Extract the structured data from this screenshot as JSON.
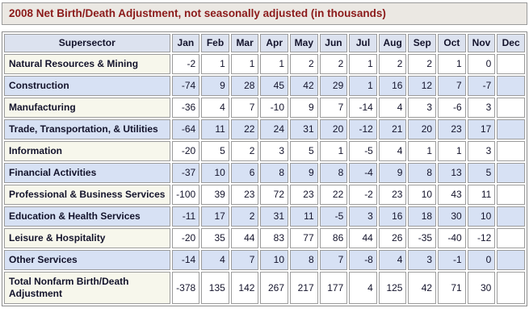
{
  "title": "2008 Net Birth/Death Adjustment, not seasonally adjusted (in thousands)",
  "chart_data": {
    "type": "table",
    "title": "2008 Net Birth/Death Adjustment, not seasonally adjusted (in thousands)",
    "units": "thousands",
    "columns": [
      "Supersector",
      "Jan",
      "Feb",
      "Mar",
      "Apr",
      "May",
      "Jun",
      "Jul",
      "Aug",
      "Sep",
      "Oct",
      "Nov",
      "Dec"
    ],
    "rows": [
      {
        "label": "Natural Resources & Mining",
        "values": [
          -2,
          1,
          1,
          1,
          2,
          2,
          1,
          2,
          2,
          1,
          0,
          null
        ]
      },
      {
        "label": "Construction",
        "values": [
          -74,
          9,
          28,
          45,
          42,
          29,
          1,
          16,
          12,
          7,
          -7,
          null
        ]
      },
      {
        "label": "Manufacturing",
        "values": [
          -36,
          4,
          7,
          -10,
          9,
          7,
          -14,
          4,
          3,
          -6,
          3,
          null
        ]
      },
      {
        "label": "Trade, Transportation, & Utilities",
        "values": [
          -64,
          11,
          22,
          24,
          31,
          20,
          -12,
          21,
          20,
          23,
          17,
          null
        ]
      },
      {
        "label": "Information",
        "values": [
          -20,
          5,
          2,
          3,
          5,
          1,
          -5,
          4,
          1,
          1,
          3,
          null
        ]
      },
      {
        "label": "Financial Activities",
        "values": [
          -37,
          10,
          6,
          8,
          9,
          8,
          -4,
          9,
          8,
          13,
          5,
          null
        ]
      },
      {
        "label": "Professional & Business Services",
        "values": [
          -100,
          39,
          23,
          72,
          23,
          22,
          -2,
          23,
          10,
          43,
          11,
          null
        ]
      },
      {
        "label": "Education & Health Services",
        "values": [
          -11,
          17,
          2,
          31,
          11,
          -5,
          3,
          16,
          18,
          30,
          10,
          null
        ]
      },
      {
        "label": "Leisure & Hospitality",
        "values": [
          -20,
          35,
          44,
          83,
          77,
          86,
          44,
          26,
          -35,
          -40,
          -12,
          null
        ]
      },
      {
        "label": "Other Services",
        "values": [
          -14,
          4,
          7,
          10,
          8,
          7,
          -8,
          4,
          3,
          -1,
          0,
          null
        ]
      },
      {
        "label": "Total Nonfarm Birth/Death Adjustment",
        "values": [
          -378,
          135,
          142,
          267,
          217,
          177,
          4,
          125,
          42,
          71,
          30,
          null
        ]
      }
    ]
  },
  "colors": {
    "title_text": "#8b1a1a",
    "title_bar_bg": "#ebe8e3",
    "header_bg": "#dce2ef",
    "alt_row_bg": "#d7e1f4",
    "label_col_bg": "#f7f7ec",
    "cell_border": "#9c9c9c",
    "table_text": "#13132b"
  }
}
